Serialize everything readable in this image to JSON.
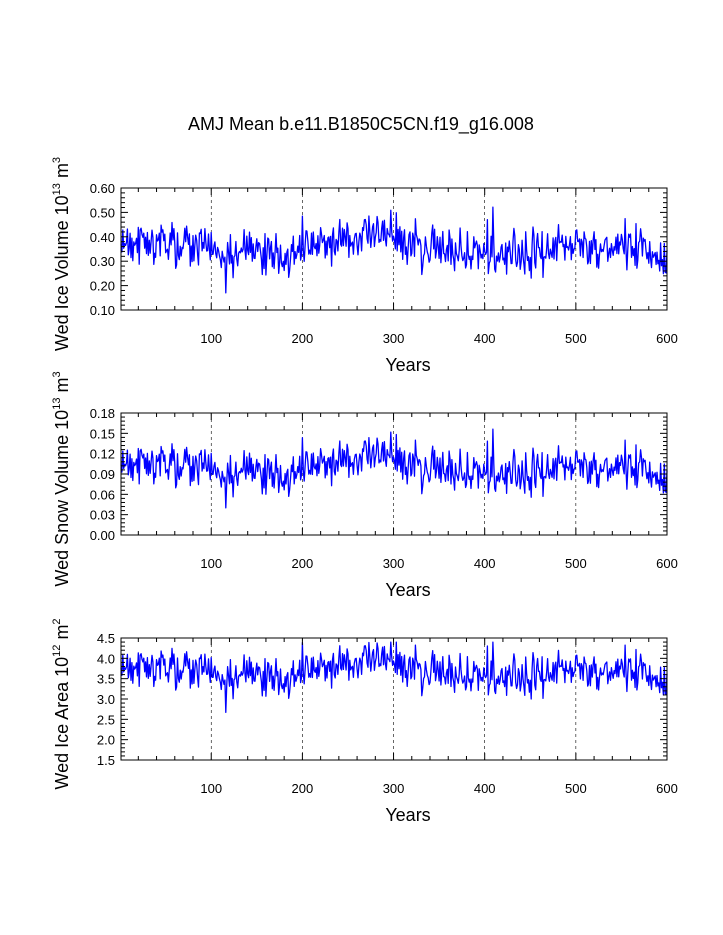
{
  "figure": {
    "title": "AMJ Mean b.e11.B1850C5CN.f19_g16.008",
    "background": "#ffffff",
    "line_color": "#0000ff"
  },
  "chart_data": [
    {
      "type": "line",
      "name": "ice-volume",
      "title": "",
      "xlabel": "Years",
      "ylabel_main": "Wed Ice Volume 10",
      "ylabel_exp": "13",
      "ylabel_unit": " m",
      "ylabel_unit_exp": "3",
      "xlim": [
        1,
        600
      ],
      "ylim": [
        0.1,
        0.6
      ],
      "xticks": [
        100,
        200,
        300,
        400,
        500,
        600
      ],
      "yticks": [
        0.1,
        0.2,
        0.3,
        0.4,
        0.5,
        0.6
      ],
      "ytick_labels": [
        "0.10",
        "0.20",
        "0.30",
        "0.40",
        "0.50",
        "0.60"
      ],
      "grid": "vertical dashed at major x ticks",
      "series": [
        {
          "name": "Wed Ice Volume",
          "color": "#0000ff",
          "mean": 0.35,
          "amplitude": 0.055,
          "min_seen": 0.15,
          "max_seen": 0.56
        }
      ]
    },
    {
      "type": "line",
      "name": "snow-volume",
      "title": "",
      "xlabel": "Years",
      "ylabel_main": "Wed Snow Volume 10",
      "ylabel_exp": "13",
      "ylabel_unit": " m",
      "ylabel_unit_exp": "3",
      "xlim": [
        1,
        600
      ],
      "ylim": [
        0.0,
        0.18
      ],
      "xticks": [
        100,
        200,
        300,
        400,
        500,
        600
      ],
      "yticks": [
        0.0,
        0.03,
        0.06,
        0.09,
        0.12,
        0.15,
        0.18
      ],
      "ytick_labels": [
        "0.00",
        "0.03",
        "0.06",
        "0.09",
        "0.12",
        "0.15",
        "0.18"
      ],
      "grid": "vertical dashed at major x ticks",
      "series": [
        {
          "name": "Wed Snow Volume",
          "color": "#0000ff",
          "mean": 0.097,
          "amplitude": 0.019,
          "min_seen": 0.04,
          "max_seen": 0.165
        }
      ]
    },
    {
      "type": "line",
      "name": "ice-area",
      "title": "",
      "xlabel": "Years",
      "ylabel_main": "Wed Ice Area 10",
      "ylabel_exp": "12",
      "ylabel_unit": " m",
      "ylabel_unit_exp": "2",
      "xlim": [
        1,
        600
      ],
      "ylim": [
        1.5,
        4.5
      ],
      "xticks": [
        100,
        200,
        300,
        400,
        500,
        600
      ],
      "yticks": [
        1.5,
        2.0,
        2.5,
        3.0,
        3.5,
        4.0,
        4.5
      ],
      "ytick_labels": [
        "1.5",
        "2.0",
        "2.5",
        "3.0",
        "3.5",
        "4.0",
        "4.5"
      ],
      "grid": "vertical dashed at major x ticks",
      "series": [
        {
          "name": "Wed Ice Area",
          "color": "#0000ff",
          "mean": 3.65,
          "amplitude": 0.3,
          "min_seen": 2.55,
          "max_seen": 4.4
        }
      ]
    }
  ]
}
